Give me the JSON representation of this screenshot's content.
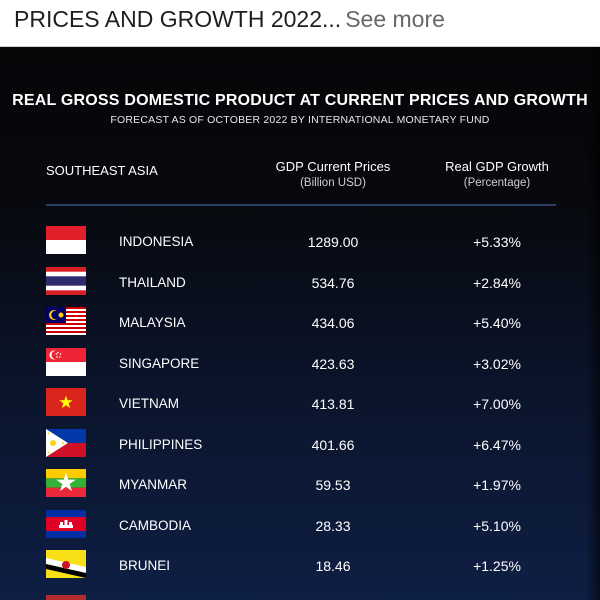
{
  "post": {
    "caption": "PRICES AND GROWTH 2022...",
    "see_more": "See more"
  },
  "infographic": {
    "title": "REAL GROSS DOMESTIC PRODUCT AT CURRENT PRICES AND GROWTH",
    "subtitle": "FORECAST AS OF OCTOBER 2022 BY INTERNATIONAL MONETARY FUND",
    "region_header": "SOUTHEAST ASIA",
    "gdp_header": "GDP Current Prices",
    "gdp_unit": "(Billion USD)",
    "growth_header": "Real GDP Growth",
    "growth_unit": "(Percentage)",
    "rows": [
      {
        "country": "INDONESIA",
        "gdp": "1289.00",
        "growth": "+5.33%",
        "flag": "indonesia-flag-icon"
      },
      {
        "country": "THAILAND",
        "gdp": "534.76",
        "growth": "+2.84%",
        "flag": "thailand-flag-icon"
      },
      {
        "country": "MALAYSIA",
        "gdp": "434.06",
        "growth": "+5.40%",
        "flag": "malaysia-flag-icon"
      },
      {
        "country": "SINGAPORE",
        "gdp": "423.63",
        "growth": "+3.02%",
        "flag": "singapore-flag-icon"
      },
      {
        "country": "VIETNAM",
        "gdp": "413.81",
        "growth": "+7.00%",
        "flag": "vietnam-flag-icon"
      },
      {
        "country": "PHILIPPINES",
        "gdp": "401.66",
        "growth": "+6.47%",
        "flag": "philippines-flag-icon"
      },
      {
        "country": "MYANMAR",
        "gdp": "59.53",
        "growth": "+1.97%",
        "flag": "myanmar-flag-icon"
      },
      {
        "country": "CAMBODIA",
        "gdp": "28.33",
        "growth": "+5.10%",
        "flag": "cambodia-flag-icon"
      },
      {
        "country": "BRUNEI",
        "gdp": "18.46",
        "growth": "+1.25%",
        "flag": "brunei-flag-icon"
      }
    ]
  },
  "colors": {
    "caption_bg": "#ffffff",
    "caption_text": "#1c1e21",
    "see_more": "#65676b",
    "background_top": "#050608",
    "background_bottom": "#0e1f44",
    "divider": "#2d3f63"
  }
}
